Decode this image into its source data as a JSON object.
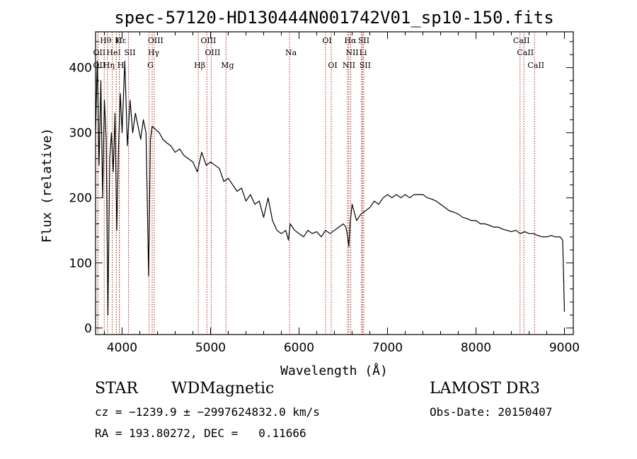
{
  "chart_data": {
    "type": "line",
    "title": "spec-57120-HD130444N001742V01_sp10-150.fits",
    "xlabel": "Wavelength (Å)",
    "ylabel": "Flux (relative)",
    "xlim": [
      3700,
      9100
    ],
    "ylim": [
      -10,
      455
    ],
    "xticks": [
      4000,
      5000,
      6000,
      7000,
      8000,
      9000
    ],
    "yticks": [
      0,
      100,
      200,
      300,
      400
    ],
    "line_color": "#000000",
    "marker_color": "#b22222",
    "series": [
      {
        "name": "spectrum",
        "x": [
          3700,
          3720,
          3740,
          3760,
          3780,
          3800,
          3820,
          3840,
          3860,
          3880,
          3900,
          3920,
          3940,
          3960,
          3980,
          4000,
          4030,
          4060,
          4090,
          4120,
          4150,
          4180,
          4210,
          4240,
          4270,
          4300,
          4320,
          4340,
          4380,
          4420,
          4460,
          4500,
          4550,
          4600,
          4650,
          4700,
          4750,
          4800,
          4850,
          4900,
          4950,
          5000,
          5050,
          5100,
          5150,
          5200,
          5250,
          5300,
          5350,
          5400,
          5450,
          5500,
          5550,
          5600,
          5650,
          5700,
          5750,
          5800,
          5850,
          5880,
          5900,
          5950,
          6000,
          6050,
          6100,
          6150,
          6200,
          6250,
          6300,
          6350,
          6400,
          6450,
          6500,
          6530,
          6550,
          6563,
          6580,
          6600,
          6650,
          6700,
          6750,
          6800,
          6850,
          6900,
          6950,
          7000,
          7050,
          7100,
          7150,
          7200,
          7250,
          7300,
          7350,
          7400,
          7450,
          7500,
          7550,
          7600,
          7650,
          7700,
          7750,
          7800,
          7850,
          7900,
          7950,
          8000,
          8050,
          8100,
          8150,
          8200,
          8250,
          8300,
          8350,
          8400,
          8450,
          8500,
          8550,
          8600,
          8650,
          8700,
          8750,
          8800,
          8850,
          8900,
          8950,
          8980,
          9000
        ],
        "values": [
          300,
          410,
          250,
          380,
          200,
          350,
          290,
          20,
          260,
          300,
          240,
          330,
          150,
          280,
          360,
          300,
          410,
          280,
          350,
          300,
          330,
          310,
          290,
          320,
          300,
          80,
          290,
          310,
          305,
          300,
          290,
          285,
          280,
          270,
          275,
          265,
          260,
          255,
          240,
          270,
          250,
          255,
          250,
          245,
          225,
          230,
          220,
          210,
          215,
          195,
          205,
          190,
          195,
          170,
          200,
          165,
          150,
          145,
          150,
          135,
          160,
          150,
          145,
          140,
          150,
          145,
          148,
          140,
          150,
          145,
          150,
          155,
          160,
          155,
          140,
          125,
          165,
          190,
          165,
          175,
          180,
          185,
          195,
          190,
          200,
          205,
          200,
          205,
          200,
          205,
          200,
          205,
          205,
          205,
          200,
          198,
          195,
          190,
          185,
          180,
          178,
          175,
          170,
          168,
          165,
          165,
          160,
          160,
          158,
          155,
          155,
          152,
          150,
          148,
          150,
          145,
          148,
          145,
          145,
          142,
          140,
          140,
          142,
          140,
          140,
          135,
          25
        ]
      }
    ],
    "line_markers": [
      {
        "name": "Hθ",
        "wave": 3798,
        "row": 0
      },
      {
        "name": "K",
        "wave": 3934,
        "row": 0
      },
      {
        "name": "Hε",
        "wave": 3970,
        "row": 0
      },
      {
        "name": "OIII",
        "wave": 4363,
        "row": 0
      },
      {
        "name": "OIII",
        "wave": 4959,
        "row": 0
      },
      {
        "name": "OI",
        "wave": 6300,
        "row": 0
      },
      {
        "name": "Hα",
        "wave": 6563,
        "row": 0
      },
      {
        "name": "SII",
        "wave": 6716,
        "row": 0
      },
      {
        "name": "CaII",
        "wave": 8498,
        "row": 0
      },
      {
        "name": "OII",
        "wave": 3727,
        "row": 1
      },
      {
        "name": "HeI",
        "wave": 3889,
        "row": 1
      },
      {
        "name": "SII",
        "wave": 4072,
        "row": 1
      },
      {
        "name": "Hγ",
        "wave": 4340,
        "row": 1
      },
      {
        "name": "OIII",
        "wave": 5007,
        "row": 1
      },
      {
        "name": "Na",
        "wave": 5893,
        "row": 1
      },
      {
        "name": "NII",
        "wave": 6584,
        "row": 1
      },
      {
        "name": "Li",
        "wave": 6708,
        "row": 1
      },
      {
        "name": "CaII",
        "wave": 8542,
        "row": 1
      },
      {
        "name": "OII",
        "wave": 3727,
        "row": 2
      },
      {
        "name": "Hη",
        "wave": 3835,
        "row": 2
      },
      {
        "name": "H",
        "wave": 3968,
        "row": 2
      },
      {
        "name": "G",
        "wave": 4304,
        "row": 2
      },
      {
        "name": "Hβ",
        "wave": 4861,
        "row": 2
      },
      {
        "name": "Mg",
        "wave": 5175,
        "row": 2
      },
      {
        "name": "OI",
        "wave": 6364,
        "row": 2
      },
      {
        "name": "NII",
        "wave": 6548,
        "row": 2
      },
      {
        "name": "SII",
        "wave": 6731,
        "row": 2
      },
      {
        "name": "CaII",
        "wave": 8662,
        "row": 2
      }
    ]
  },
  "info": {
    "class": "STAR",
    "subclass": "WDMagnetic",
    "survey": "LAMOST DR3",
    "cz": "cz = −1239.9 ± −2997624832.0 km/s",
    "obs_date": "Obs-Date: 20150407",
    "radec": "RA = 193.80272, DEC =   0.11666"
  }
}
